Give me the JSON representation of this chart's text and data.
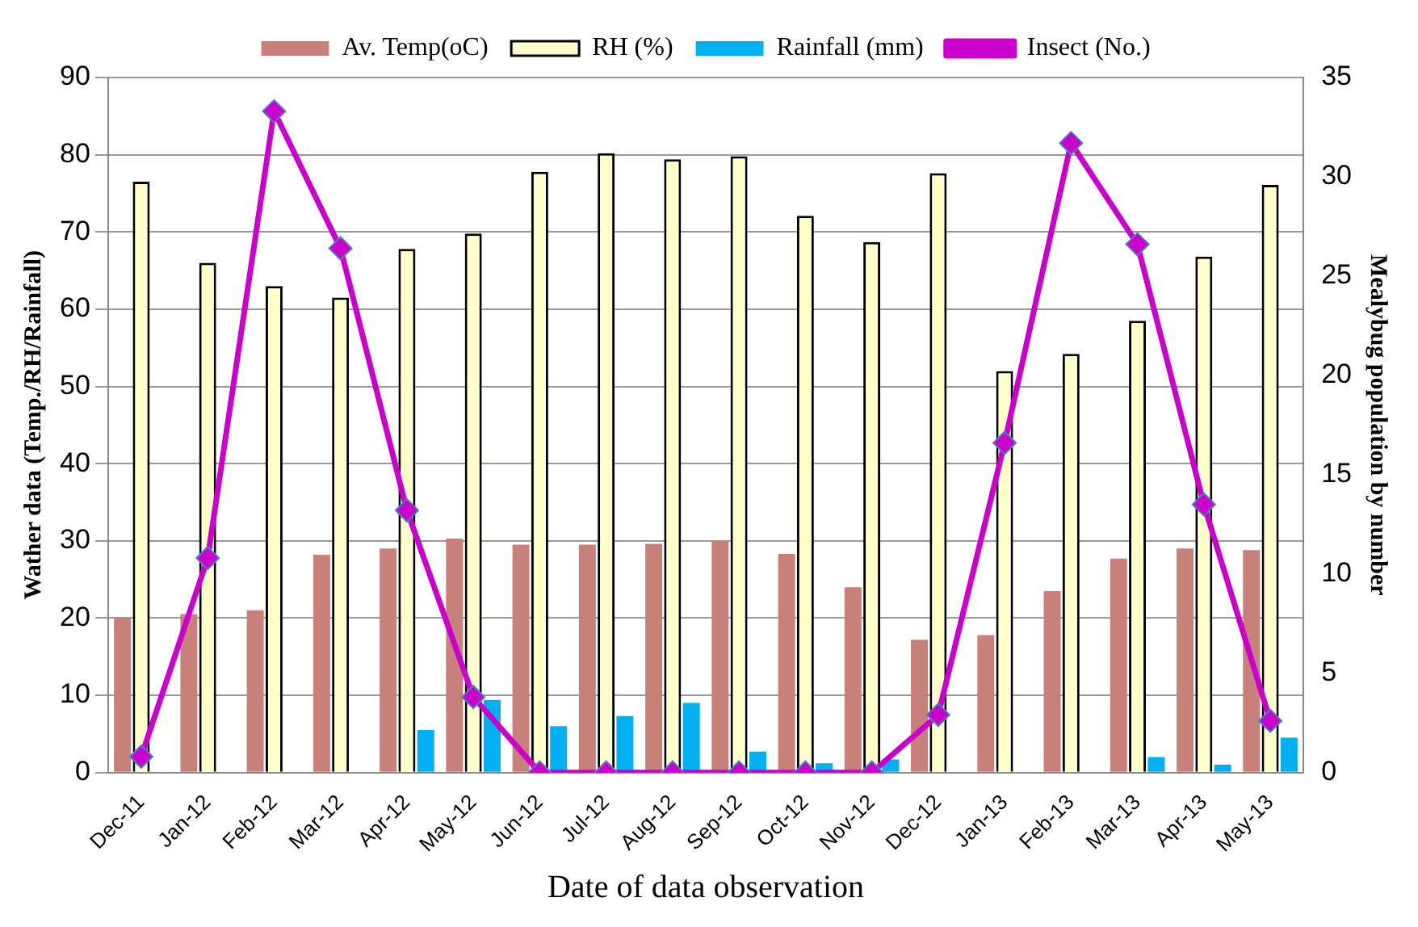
{
  "chart_data": {
    "type": "bar",
    "xlabel": "Date of data observation",
    "ylabel": "Wather data (Temp./RH/Rainfall)",
    "y2label": "Mealybug population by number",
    "categories": [
      "Dec-11",
      "Jan-12",
      "Feb-12",
      "Mar-12",
      "Apr-12",
      "May-12",
      "Jun-12",
      "Jul-12",
      "Aug-12",
      "Sep-12",
      "Oct-12",
      "Nov-12",
      "Dec-12",
      "Jan-13",
      "Feb-13",
      "Mar-13",
      "Apr-13",
      "May-13"
    ],
    "series": [
      {
        "name": "Av. Temp(oC)",
        "color": "#c8807a",
        "values": [
          20,
          20.5,
          21,
          28.2,
          29,
          30.3,
          29.5,
          29.5,
          29.6,
          30,
          28.3,
          24,
          17.2,
          17.8,
          23.5,
          27.7,
          29,
          28.8
        ]
      },
      {
        "name": "RH (%)",
        "color": "#ffffcc",
        "values": [
          76.5,
          66,
          63,
          61.5,
          67.8,
          69.8,
          77.8,
          80.2,
          79.4,
          79.8,
          72.1,
          68.7,
          77.6,
          52,
          54.2,
          58.5,
          66.8,
          76.1
        ]
      },
      {
        "name": "Rainfall (mm)",
        "color": "#00b0f0",
        "values": [
          0,
          0,
          0,
          0,
          5.5,
          9.4,
          6,
          7.3,
          9,
          2.7,
          1.2,
          1.7,
          0,
          0,
          0,
          2,
          1,
          4.5
        ]
      },
      {
        "name": "Insect (No.)",
        "type": "line",
        "axis": "y2",
        "color": "#cc00cc",
        "marker": "diamond",
        "values": [
          0.8,
          10.8,
          33.3,
          26.4,
          13.2,
          3.8,
          0,
          0,
          0,
          0,
          0,
          0,
          2.9,
          16.6,
          31.7,
          26.6,
          13.5,
          2.6
        ]
      }
    ],
    "ylim": [
      0,
      90
    ],
    "yticks": [
      0,
      10,
      20,
      30,
      40,
      50,
      60,
      70,
      80,
      90
    ],
    "y2lim": [
      0,
      35
    ],
    "y2ticks": [
      0,
      5,
      10,
      15,
      20,
      25,
      30,
      35
    ],
    "grid": "y",
    "legend": "top"
  }
}
